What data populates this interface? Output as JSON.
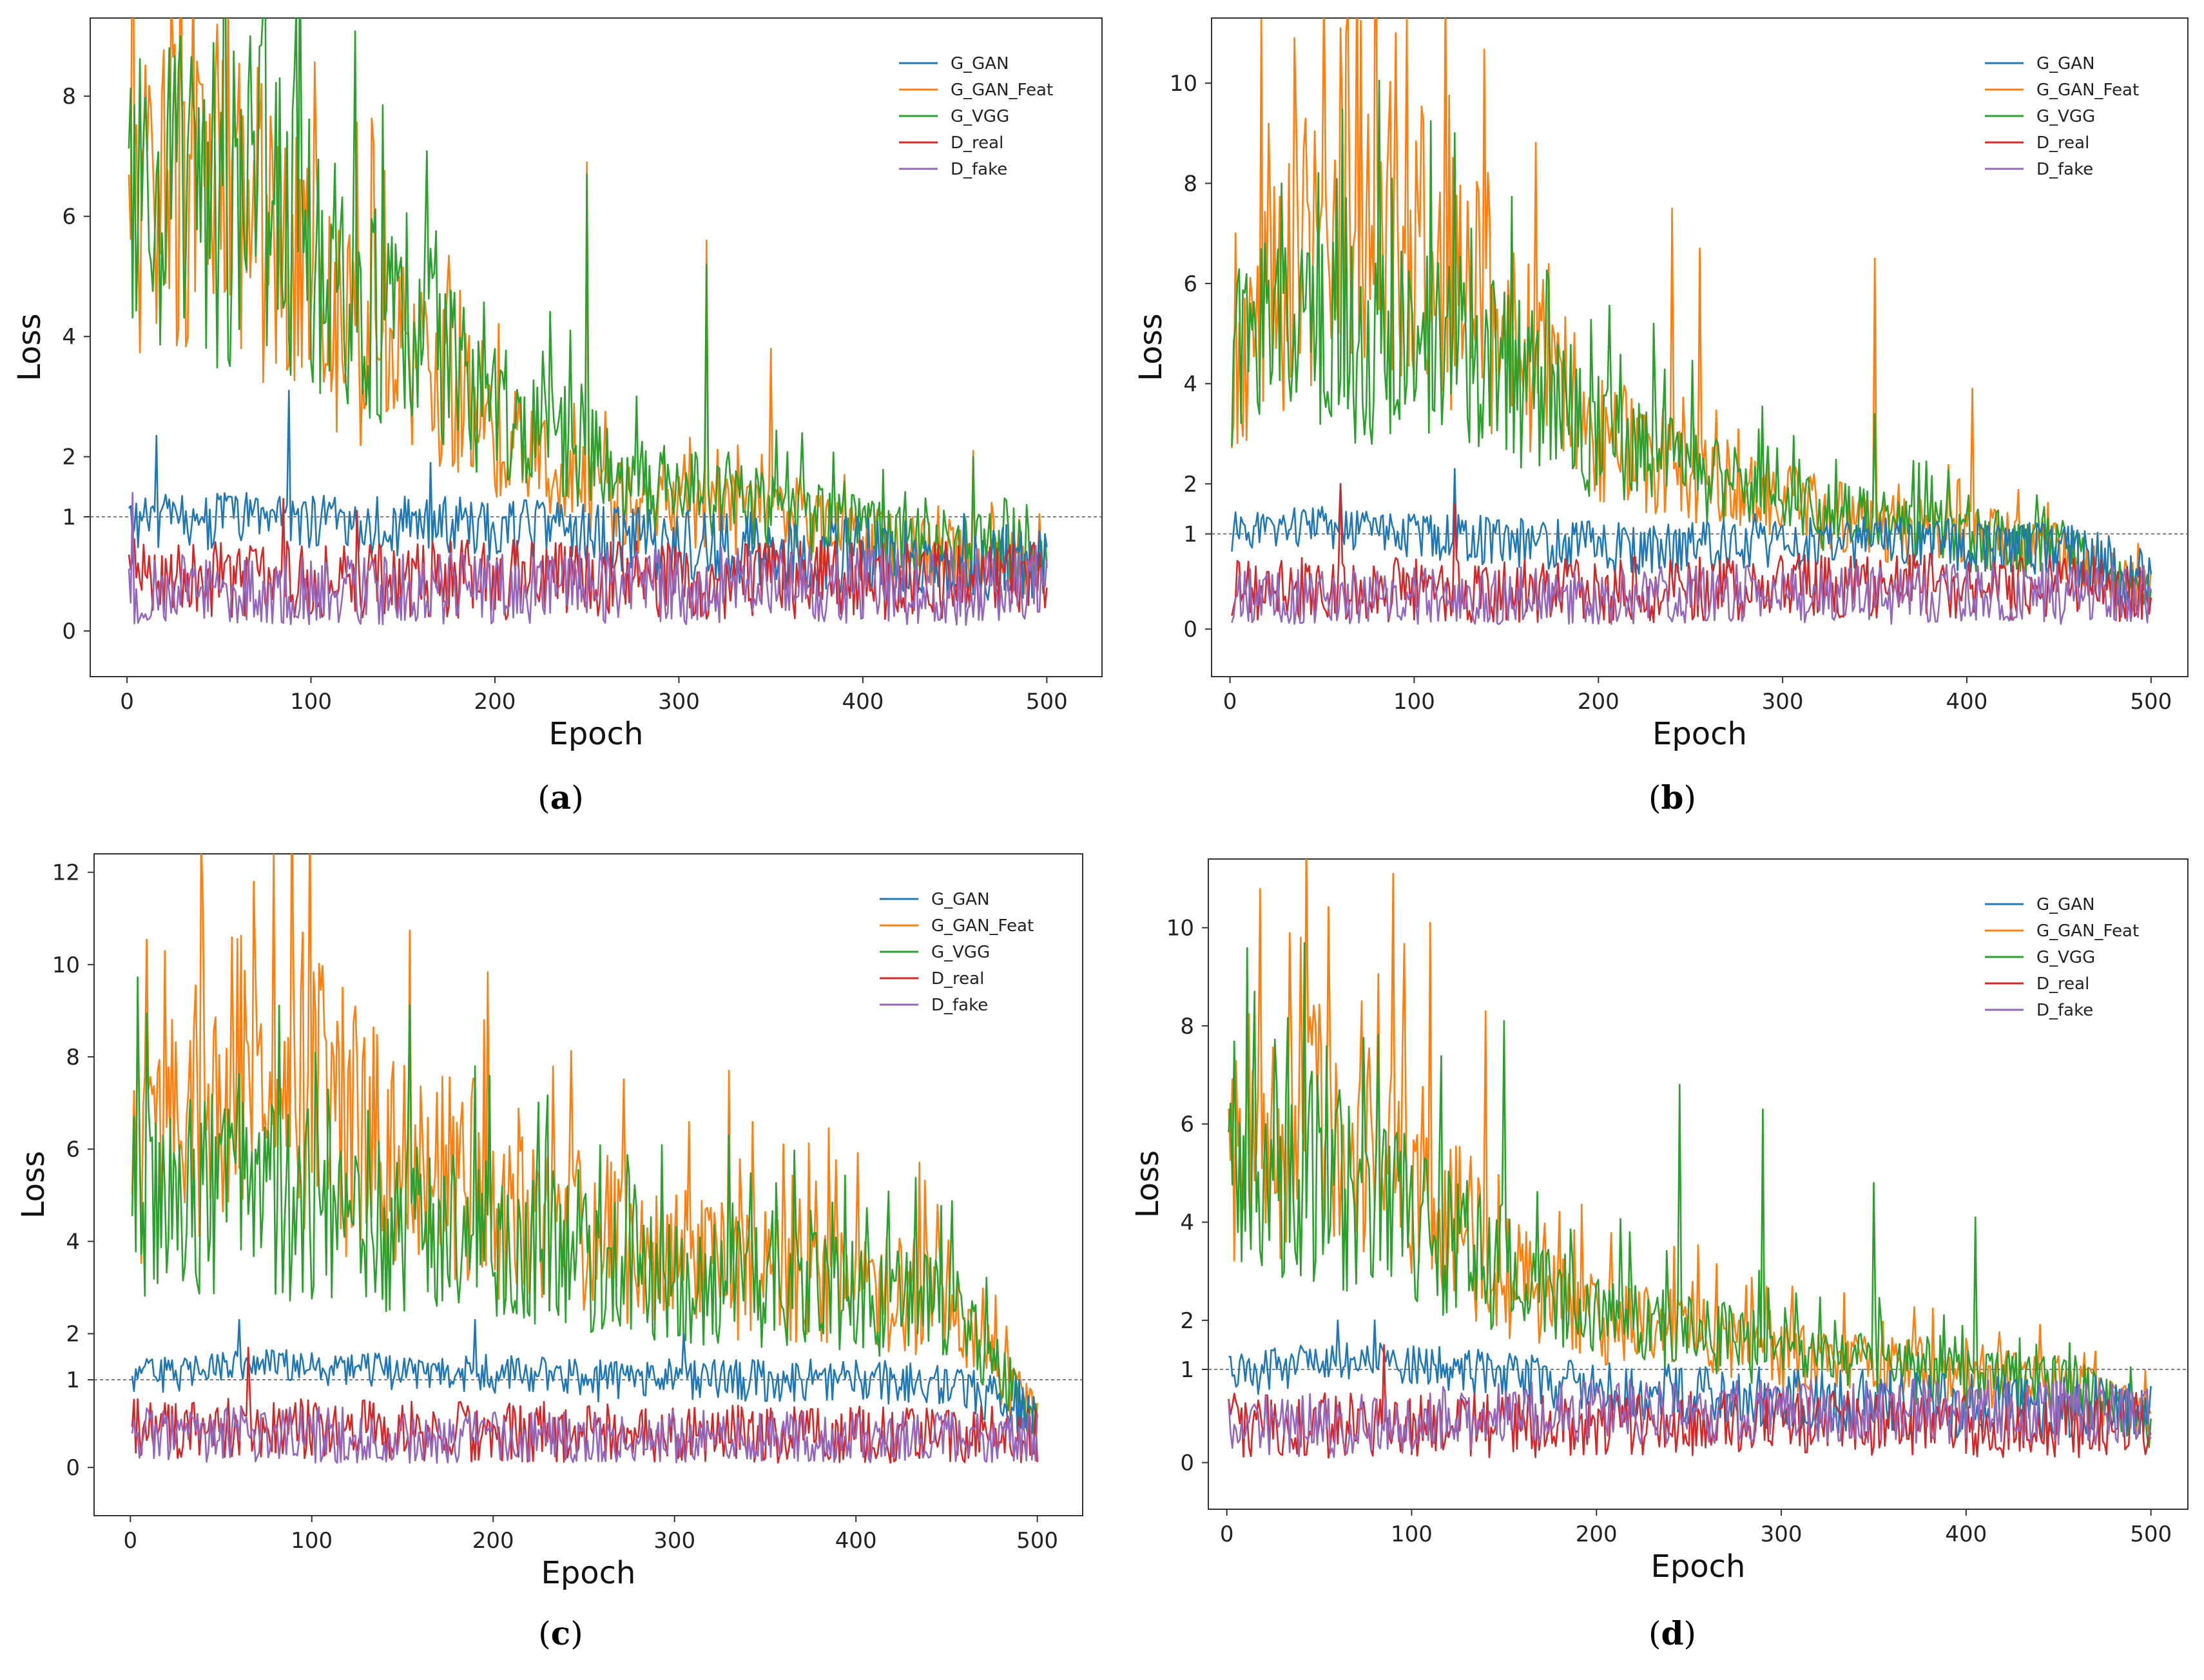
{
  "legend_colors": {
    "G_GAN": "#1f77b4",
    "G_GAN_Feat": "#ff7f0e",
    "G_VGG": "#2ca02c",
    "D_real": "#d62728",
    "D_fake": "#9467bd"
  },
  "chart_data": [
    {
      "type": "line",
      "caption_open": "(",
      "caption_letter": "a",
      "caption_close": ")",
      "xlabel": "Epoch",
      "ylabel": "Loss",
      "xlim": [
        -20,
        530
      ],
      "ylim": [
        -0.4,
        9.3
      ],
      "y_scale": "piecewise linear (0-1 stretched)",
      "xticks": [
        0,
        100,
        200,
        300,
        400,
        500
      ],
      "yticks": [
        0,
        1,
        2,
        4,
        6,
        8
      ],
      "reference_line": {
        "y": 1,
        "style": "dashed"
      },
      "legend_position": "top-right",
      "series": [
        {
          "name": "G_GAN",
          "x": [
            1,
            40,
            80,
            120,
            160,
            200,
            240,
            280,
            320,
            360,
            400,
            440,
            480,
            500
          ],
          "y": [
            1.0,
            1.05,
            1.1,
            1.0,
            1.0,
            0.95,
            0.9,
            0.8,
            0.75,
            0.7,
            0.65,
            0.6,
            0.6,
            0.55
          ],
          "peaks": [
            [
              16,
              2.35
            ],
            [
              88,
              3.1
            ],
            [
              165,
              1.9
            ],
            [
              455,
              1.05
            ]
          ]
        },
        {
          "name": "G_GAN_Feat",
          "x": [
            1,
            40,
            80,
            120,
            160,
            200,
            240,
            280,
            320,
            360,
            400,
            440,
            480,
            500
          ],
          "y": [
            6.0,
            6.2,
            5.8,
            4.0,
            3.5,
            2.4,
            1.7,
            1.2,
            1.2,
            1.1,
            0.8,
            0.7,
            0.6,
            0.55
          ],
          "peaks": [
            [
              45,
              7.7
            ],
            [
              250,
              6.9
            ],
            [
              315,
              5.6
            ],
            [
              350,
              3.8
            ],
            [
              460,
              2.1
            ]
          ]
        },
        {
          "name": "G_VGG",
          "x": [
            1,
            40,
            80,
            120,
            160,
            200,
            240,
            280,
            320,
            360,
            400,
            440,
            480,
            500
          ],
          "y": [
            6.2,
            6.3,
            6.2,
            5.0,
            4.0,
            2.8,
            2.2,
            1.6,
            1.4,
            1.2,
            0.9,
            0.8,
            0.7,
            0.6
          ],
          "peaks": [
            [
              23,
              8.8
            ],
            [
              67,
              9.0
            ],
            [
              83,
              8.3
            ],
            [
              250,
              6.7
            ],
            [
              315,
              5.2
            ],
            [
              460,
              2.0
            ]
          ]
        },
        {
          "name": "D_real",
          "x": [
            1,
            100,
            200,
            300,
            400,
            500
          ],
          "y": [
            0.5,
            0.45,
            0.45,
            0.45,
            0.45,
            0.45
          ],
          "peaks": [
            [
              85,
              1.3
            ],
            [
              125,
              1.1
            ]
          ]
        },
        {
          "name": "D_fake",
          "x": [
            1,
            100,
            200,
            300,
            400,
            500
          ],
          "y": [
            0.35,
            0.3,
            0.35,
            0.4,
            0.4,
            0.4
          ],
          "peaks": [
            [
              3,
              1.4
            ]
          ]
        }
      ]
    },
    {
      "type": "line",
      "caption_open": "(",
      "caption_letter": "b",
      "caption_close": ")",
      "xlabel": "Epoch",
      "ylabel": "Loss",
      "xlim": [
        -10,
        520
      ],
      "ylim": [
        -0.5,
        11.3
      ],
      "y_scale": "piecewise linear (0-1 stretched)",
      "xticks": [
        0,
        100,
        200,
        300,
        400,
        500
      ],
      "yticks": [
        0,
        1,
        2,
        4,
        6,
        8,
        10
      ],
      "reference_line": {
        "y": 1,
        "style": "dashed"
      },
      "legend_position": "top-right",
      "series": [
        {
          "name": "G_GAN",
          "x": [
            1,
            50,
            100,
            150,
            200,
            250,
            300,
            350,
            400,
            450,
            480,
            500
          ],
          "y": [
            1.1,
            1.2,
            1.1,
            1.0,
            0.9,
            0.9,
            0.95,
            1.0,
            0.95,
            0.9,
            0.6,
            0.5
          ],
          "peaks": [
            [
              60,
              2.0
            ],
            [
              122,
              2.3
            ],
            [
              285,
              1.4
            ],
            [
              390,
              1.3
            ]
          ]
        },
        {
          "name": "G_GAN_Feat",
          "x": [
            1,
            50,
            100,
            150,
            200,
            250,
            300,
            350,
            400,
            450,
            480,
            500
          ],
          "y": [
            4.8,
            7.0,
            7.0,
            5.0,
            3.0,
            2.2,
            1.7,
            1.3,
            1.1,
            0.9,
            0.5,
            0.4
          ],
          "peaks": [
            [
              35,
              10.9
            ],
            [
              60,
              11.1
            ],
            [
              90,
              11.0
            ],
            [
              240,
              7.5
            ],
            [
              255,
              6.7
            ],
            [
              350,
              6.5
            ],
            [
              403,
              3.9
            ]
          ]
        },
        {
          "name": "G_VGG",
          "x": [
            1,
            50,
            100,
            150,
            200,
            250,
            300,
            350,
            400,
            450,
            480,
            500
          ],
          "y": [
            4.6,
            5.0,
            5.0,
            4.2,
            3.0,
            2.2,
            1.6,
            1.3,
            1.1,
            0.9,
            0.5,
            0.4
          ],
          "peaks": [
            [
              28,
              8.0
            ],
            [
              88,
              8.1
            ],
            [
              190,
              4.3
            ],
            [
              230,
              5.2
            ],
            [
              350,
              3.4
            ]
          ]
        },
        {
          "name": "D_real",
          "x": [
            1,
            100,
            200,
            300,
            400,
            500
          ],
          "y": [
            0.4,
            0.4,
            0.4,
            0.45,
            0.45,
            0.4
          ],
          "peaks": [
            [
              60,
              2.0
            ],
            [
              122,
              1.6
            ]
          ]
        },
        {
          "name": "D_fake",
          "x": [
            1,
            100,
            200,
            300,
            400,
            500
          ],
          "y": [
            0.3,
            0.3,
            0.3,
            0.35,
            0.35,
            0.35
          ],
          "peaks": []
        }
      ]
    },
    {
      "type": "line",
      "caption_open": "(",
      "caption_letter": "c",
      "caption_close": ")",
      "xlabel": "Epoch",
      "ylabel": "Loss",
      "xlim": [
        -20,
        525
      ],
      "ylim": [
        -0.55,
        12.4
      ],
      "y_scale": "piecewise linear (0-1 stretched)",
      "xticks": [
        0,
        100,
        200,
        300,
        400,
        500
      ],
      "yticks": [
        0,
        1,
        2,
        4,
        6,
        8,
        10,
        12
      ],
      "reference_line": {
        "y": 1,
        "style": "dashed"
      },
      "legend_position": "top-right",
      "series": [
        {
          "name": "G_GAN",
          "x": [
            1,
            50,
            100,
            150,
            200,
            250,
            300,
            350,
            400,
            450,
            480,
            500
          ],
          "y": [
            1.1,
            1.3,
            1.3,
            1.2,
            1.2,
            1.1,
            1.1,
            1.1,
            1.1,
            1.0,
            0.8,
            0.6
          ],
          "peaks": [
            [
              60,
              2.3
            ],
            [
              190,
              2.3
            ],
            [
              305,
              2.0
            ]
          ]
        },
        {
          "name": "G_GAN_Feat",
          "x": [
            1,
            50,
            100,
            150,
            200,
            250,
            300,
            350,
            400,
            450,
            480,
            500
          ],
          "y": [
            5.5,
            7.5,
            7.0,
            6.0,
            5.0,
            4.2,
            3.6,
            3.3,
            3.0,
            2.7,
            1.2,
            0.5
          ],
          "peaks": [
            [
              40,
              11.3
            ],
            [
              68,
              11.8
            ],
            [
              95,
              10.7
            ],
            [
              195,
              8.8
            ],
            [
              330,
              7.7
            ]
          ]
        },
        {
          "name": "G_VGG",
          "x": [
            1,
            50,
            100,
            150,
            200,
            250,
            300,
            350,
            400,
            450,
            480,
            500
          ],
          "y": [
            4.8,
            5.0,
            4.8,
            4.4,
            4.0,
            3.5,
            3.2,
            3.0,
            2.8,
            2.6,
            1.2,
            0.5
          ],
          "peaks": [
            [
              2,
              6.7
            ],
            [
              190,
              7.8
            ],
            [
              330,
              6.3
            ]
          ]
        },
        {
          "name": "D_real",
          "x": [
            1,
            100,
            200,
            300,
            400,
            500
          ],
          "y": [
            0.45,
            0.45,
            0.4,
            0.4,
            0.35,
            0.35
          ],
          "peaks": [
            [
              65,
              1.7
            ]
          ]
        },
        {
          "name": "D_fake",
          "x": [
            1,
            100,
            200,
            300,
            400,
            500
          ],
          "y": [
            0.35,
            0.35,
            0.3,
            0.3,
            0.3,
            0.3
          ],
          "peaks": []
        }
      ]
    },
    {
      "type": "line",
      "caption_open": "(",
      "caption_letter": "d",
      "caption_close": ")",
      "xlabel": "Epoch",
      "ylabel": "Loss",
      "xlim": [
        -10,
        520
      ],
      "ylim": [
        -0.5,
        11.4
      ],
      "y_scale": "piecewise linear (0-1 stretched)",
      "xticks": [
        0,
        100,
        200,
        300,
        400,
        500
      ],
      "yticks": [
        0,
        1,
        2,
        4,
        6,
        8,
        10
      ],
      "reference_line": {
        "y": 1,
        "style": "dashed"
      },
      "legend_position": "top-right",
      "series": [
        {
          "name": "G_GAN",
          "x": [
            1,
            50,
            100,
            150,
            200,
            250,
            300,
            350,
            400,
            450,
            480,
            500
          ],
          "y": [
            1.0,
            1.2,
            1.2,
            1.0,
            0.8,
            0.75,
            0.7,
            0.65,
            0.6,
            0.6,
            0.6,
            0.55
          ],
          "peaks": [
            [
              60,
              2.0
            ],
            [
              80,
              2.0
            ]
          ]
        },
        {
          "name": "G_GAN_Feat",
          "x": [
            1,
            50,
            100,
            150,
            200,
            250,
            300,
            350,
            400,
            450,
            480,
            500
          ],
          "y": [
            5.0,
            6.0,
            5.0,
            3.0,
            2.0,
            1.8,
            1.4,
            1.2,
            1.0,
            0.9,
            0.6,
            0.5
          ],
          "peaks": [
            [
              40,
              9.8
            ],
            [
              90,
              11.1
            ],
            [
              110,
              10.1
            ],
            [
              140,
              8.3
            ]
          ]
        },
        {
          "name": "G_VGG",
          "x": [
            1,
            50,
            100,
            150,
            200,
            250,
            300,
            350,
            400,
            450,
            480,
            500
          ],
          "y": [
            4.5,
            5.0,
            4.0,
            3.0,
            2.0,
            1.8,
            1.4,
            1.2,
            1.0,
            0.9,
            0.6,
            0.4
          ],
          "peaks": [
            [
              15,
              8.7
            ],
            [
              150,
              8.1
            ],
            [
              245,
              6.8
            ],
            [
              290,
              6.3
            ],
            [
              350,
              4.8
            ],
            [
              405,
              4.1
            ]
          ]
        },
        {
          "name": "D_real",
          "x": [
            1,
            100,
            200,
            300,
            400,
            500
          ],
          "y": [
            0.4,
            0.4,
            0.4,
            0.45,
            0.4,
            0.4
          ],
          "peaks": [
            [
              85,
              1.5
            ]
          ]
        },
        {
          "name": "D_fake",
          "x": [
            1,
            100,
            200,
            300,
            400,
            500
          ],
          "y": [
            0.35,
            0.45,
            0.55,
            0.55,
            0.55,
            0.5
          ],
          "peaks": []
        }
      ]
    }
  ]
}
